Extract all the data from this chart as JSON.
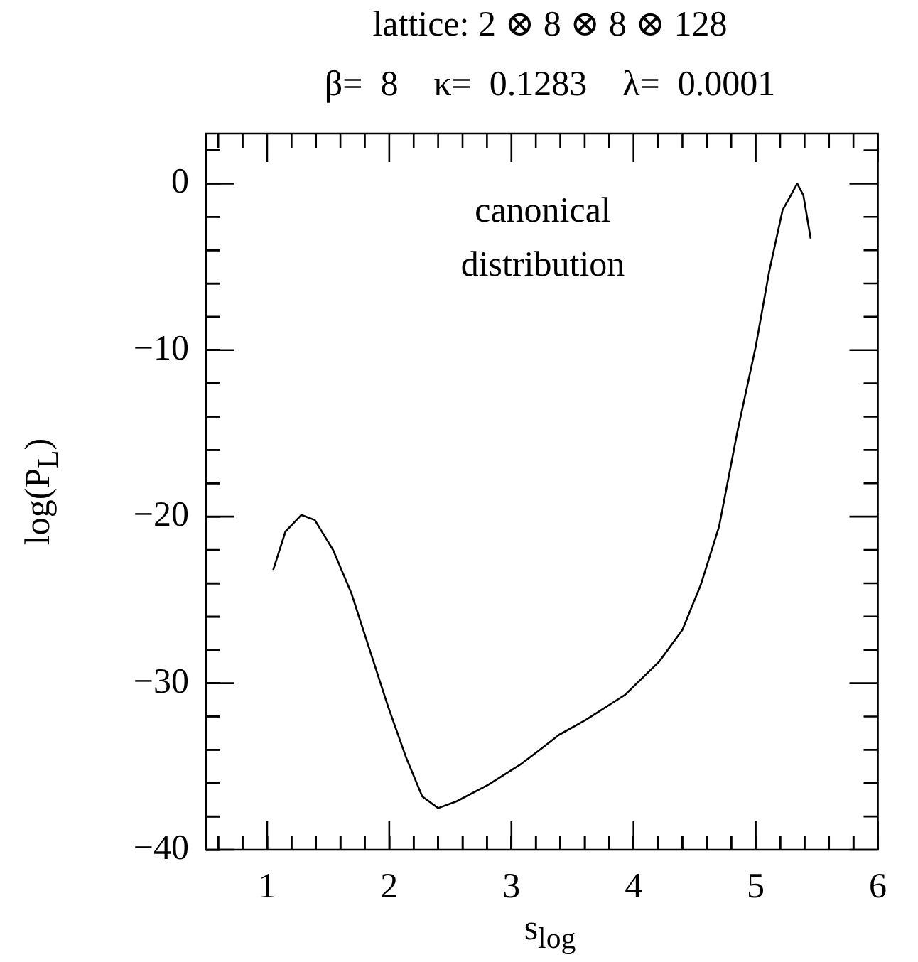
{
  "chart_data": {
    "type": "line",
    "title": "lattice: 2 ⊗ 8 ⊗ 8 ⊗ 128",
    "subtitle": "β=  8    κ=  0.1283    λ=  0.0001",
    "xlabel": "s$_{log}$",
    "ylabel": "log(P$_{L}$)",
    "annotations": [
      "canonical\ndistribution"
    ],
    "series": [
      {
        "color": "#000000",
        "x": [
          1.05,
          1.15,
          1.28,
          1.39,
          1.54,
          1.69,
          1.84,
          1.99,
          2.14,
          2.27,
          2.4,
          2.55,
          2.81,
          3.07,
          3.25,
          3.39,
          3.61,
          3.93,
          4.21,
          4.4,
          4.55,
          4.7,
          4.85,
          5.0,
          5.11,
          5.22,
          5.34,
          5.39,
          5.45
        ],
        "values": [
          -23.2,
          -20.9,
          -19.9,
          -20.2,
          -22.0,
          -24.6,
          -28.0,
          -31.4,
          -34.5,
          -36.8,
          -37.5,
          -37.1,
          -36.1,
          -34.9,
          -33.9,
          -33.1,
          -32.2,
          -30.7,
          -28.7,
          -26.8,
          -24.1,
          -20.6,
          -14.9,
          -9.8,
          -5.3,
          -1.6,
          0,
          -0.7,
          -3.3
        ]
      }
    ],
    "xlim": [
      0.5,
      6
    ],
    "xticks": [
      {
        "value": 0.6,
        "label": null
      },
      {
        "value": 0.8,
        "label": null
      },
      1,
      {
        "value": 1.2,
        "label": null
      },
      {
        "value": 1.4,
        "label": null
      },
      {
        "value": 1.6,
        "label": null
      },
      {
        "value": 1.8,
        "label": null
      },
      2,
      {
        "value": 2.2,
        "label": null
      },
      {
        "value": 2.4,
        "label": null
      },
      {
        "value": 2.6,
        "label": null
      },
      {
        "value": 2.8,
        "label": null
      },
      3,
      {
        "value": 3.2,
        "label": null
      },
      {
        "value": 3.4,
        "label": null
      },
      {
        "value": 3.6,
        "label": null
      },
      {
        "value": 3.8,
        "label": null
      },
      4,
      {
        "value": 4.2,
        "label": null
      },
      {
        "value": 4.4,
        "label": null
      },
      {
        "value": 4.6,
        "label": null
      },
      {
        "value": 4.8,
        "label": null
      },
      5,
      {
        "value": 5.2,
        "label": null
      },
      {
        "value": 5.4,
        "label": null
      },
      {
        "value": 5.6,
        "label": null
      },
      {
        "value": 5.8,
        "label": null
      },
      6
    ],
    "ylim": [
      -40,
      3
    ],
    "yticks": [
      -40,
      {
        "value": -38,
        "label": null
      },
      {
        "value": -36,
        "label": null
      },
      {
        "value": -34,
        "label": null
      },
      {
        "value": -32,
        "label": null
      },
      -30,
      {
        "value": -28,
        "label": null
      },
      {
        "value": -26,
        "label": null
      },
      {
        "value": -24,
        "label": null
      },
      {
        "value": -22,
        "label": null
      },
      -20,
      {
        "value": -18,
        "label": null
      },
      {
        "value": -16,
        "label": null
      },
      {
        "value": -14,
        "label": null
      },
      {
        "value": -12,
        "label": null
      },
      -10,
      {
        "value": -8,
        "label": null
      },
      {
        "value": -6,
        "label": null
      },
      {
        "value": -4,
        "label": null
      },
      {
        "value": -2,
        "label": null
      },
      0,
      {
        "value": 2,
        "label": null
      }
    ],
    "grid": false,
    "legend": false,
    "marker": "none",
    "line_style": "solid"
  }
}
